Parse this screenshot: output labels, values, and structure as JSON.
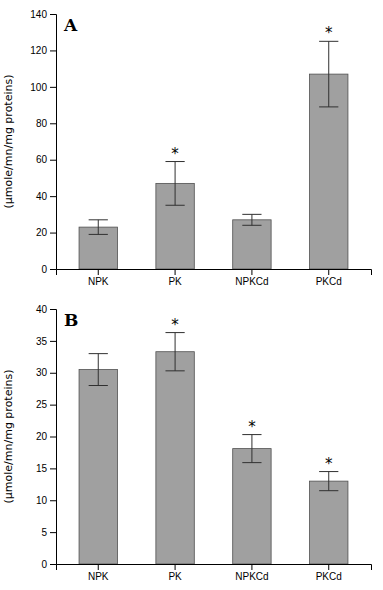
{
  "chart_data": [
    {
      "type": "bar",
      "title": "A",
      "categories": [
        "NPK",
        "PK",
        "NPKCd",
        "PKCd"
      ],
      "values": [
        23,
        47,
        27,
        107
      ],
      "errors": [
        4,
        12,
        3,
        18
      ],
      "annotations": [
        null,
        "*",
        null,
        "*"
      ],
      "ylabel": "(μmole/mn/mg proteins)",
      "color": "#a0a0a0",
      "ylim": [
        0,
        140
      ],
      "yticks": [
        0,
        20,
        40,
        60,
        80,
        100,
        120,
        140
      ],
      "grid": false
    },
    {
      "type": "bar",
      "title": "B",
      "categories": [
        "NPK",
        "PK",
        "NPKCd",
        "PKCd"
      ],
      "values": [
        30.5,
        33.3,
        18.1,
        13.0
      ],
      "errors": [
        2.5,
        3.0,
        2.2,
        1.5
      ],
      "annotations": [
        null,
        "*",
        "*",
        "*"
      ],
      "ylabel": "(μmole/mn/mg proteins)",
      "color": "#a0a0a0",
      "ylim": [
        0,
        40
      ],
      "yticks": [
        0,
        5,
        10,
        15,
        20,
        25,
        30,
        35,
        40
      ],
      "grid": false
    }
  ]
}
